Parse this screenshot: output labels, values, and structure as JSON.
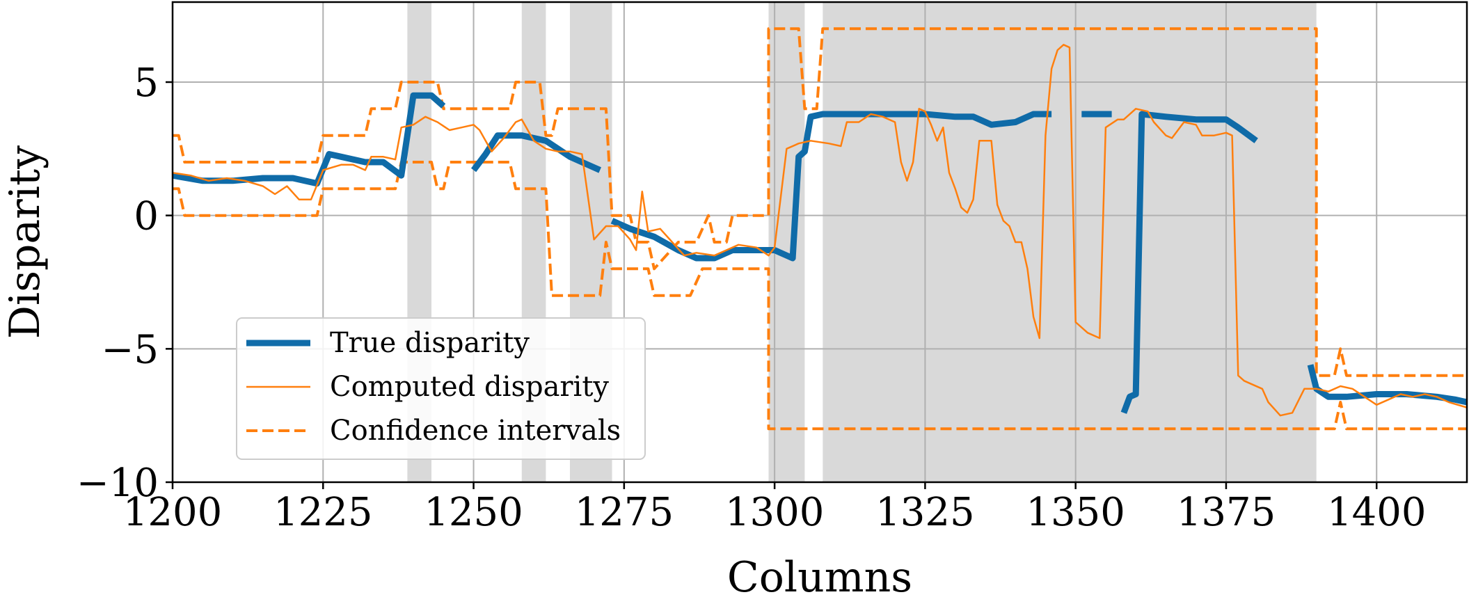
{
  "chart_data": {
    "type": "line",
    "title": "",
    "xlabel": "Columns",
    "ylabel": "Disparity",
    "xlim": [
      1200,
      1415
    ],
    "ylim": [
      -10,
      8
    ],
    "grid": true,
    "legend_position": "lower-left",
    "x_ticks": [
      1200,
      1225,
      1250,
      1275,
      1300,
      1325,
      1350,
      1375,
      1400
    ],
    "x_tick_labels": [
      "1200",
      "1225",
      "1250",
      "1275",
      "1300",
      "1325",
      "1350",
      "1375",
      "1400"
    ],
    "y_ticks": [
      5,
      0,
      -5,
      -10
    ],
    "y_tick_labels": [
      "5",
      "0",
      "−5",
      "−10"
    ],
    "shaded_regions": [
      [
        1239,
        1243
      ],
      [
        1258,
        1262
      ],
      [
        1266,
        1273
      ],
      [
        1299,
        1305
      ],
      [
        1308,
        1390
      ]
    ],
    "series": [
      {
        "name": "True disparity",
        "style": "thick",
        "color": "#0f6ba8",
        "segments": [
          [
            [
              1200,
              1.5
            ],
            [
              1205,
              1.3
            ],
            [
              1210,
              1.3
            ],
            [
              1215,
              1.4
            ],
            [
              1220,
              1.4
            ],
            [
              1224,
              1.2
            ],
            [
              1226,
              2.3
            ],
            [
              1228,
              2.2
            ],
            [
              1232,
              2.0
            ],
            [
              1235,
              2.0
            ],
            [
              1238,
              1.5
            ],
            [
              1240,
              4.5
            ],
            [
              1243,
              4.5
            ],
            [
              1245,
              4.1
            ]
          ],
          [
            [
              1250,
              1.7
            ],
            [
              1252,
              2.3
            ],
            [
              1254,
              3.0
            ],
            [
              1258,
              3.0
            ],
            [
              1262,
              2.8
            ],
            [
              1266,
              2.2
            ],
            [
              1270,
              1.8
            ],
            [
              1271,
              1.7
            ]
          ],
          [
            [
              1273,
              -0.2
            ],
            [
              1276,
              -0.5
            ],
            [
              1280,
              -0.8
            ],
            [
              1284,
              -1.3
            ],
            [
              1287,
              -1.6
            ],
            [
              1290,
              -1.6
            ],
            [
              1293,
              -1.3
            ],
            [
              1297,
              -1.3
            ],
            [
              1300,
              -1.3
            ],
            [
              1302,
              -1.5
            ],
            [
              1303,
              -1.6
            ],
            [
              1304,
              2.2
            ],
            [
              1305,
              2.4
            ],
            [
              1306,
              3.7
            ],
            [
              1308,
              3.8
            ],
            [
              1315,
              3.8
            ],
            [
              1320,
              3.8
            ],
            [
              1325,
              3.8
            ],
            [
              1330,
              3.7
            ],
            [
              1333,
              3.7
            ],
            [
              1336,
              3.4
            ],
            [
              1340,
              3.5
            ],
            [
              1343,
              3.8
            ],
            [
              1346,
              3.8
            ]
          ],
          [
            [
              1351,
              3.8
            ],
            [
              1356,
              3.8
            ]
          ],
          [
            [
              1358,
              -7.4
            ],
            [
              1359,
              -6.8
            ],
            [
              1360,
              -6.7
            ],
            [
              1361,
              3.8
            ],
            [
              1365,
              3.7
            ],
            [
              1370,
              3.6
            ],
            [
              1375,
              3.6
            ],
            [
              1377,
              3.3
            ],
            [
              1380,
              2.8
            ]
          ],
          [
            [
              1389,
              -5.6
            ],
            [
              1390,
              -6.5
            ],
            [
              1392,
              -6.8
            ],
            [
              1395,
              -6.8
            ],
            [
              1400,
              -6.7
            ],
            [
              1405,
              -6.7
            ],
            [
              1410,
              -6.8
            ],
            [
              1413,
              -6.9
            ],
            [
              1415,
              -7.0
            ]
          ]
        ]
      },
      {
        "name": "Computed disparity",
        "style": "thin",
        "color": "#ff7f0e",
        "segments": [
          [
            [
              1200,
              1.6
            ],
            [
              1203,
              1.5
            ],
            [
              1206,
              1.3
            ],
            [
              1209,
              1.4
            ],
            [
              1212,
              1.3
            ],
            [
              1215,
              1.1
            ],
            [
              1217,
              0.8
            ],
            [
              1219,
              1.1
            ],
            [
              1221,
              0.6
            ],
            [
              1223,
              0.6
            ],
            [
              1225,
              1.7
            ],
            [
              1228,
              1.9
            ],
            [
              1230,
              1.9
            ],
            [
              1232,
              1.7
            ],
            [
              1233,
              2.2
            ],
            [
              1235,
              2.2
            ],
            [
              1237,
              2.1
            ],
            [
              1238,
              3.3
            ],
            [
              1240,
              3.4
            ],
            [
              1242,
              3.7
            ],
            [
              1244,
              3.5
            ],
            [
              1246,
              3.2
            ],
            [
              1248,
              3.3
            ],
            [
              1250,
              3.4
            ],
            [
              1251,
              3.2
            ],
            [
              1253,
              2.4
            ],
            [
              1255,
              2.9
            ],
            [
              1257,
              3.5
            ],
            [
              1258,
              3.6
            ],
            [
              1260,
              2.8
            ],
            [
              1262,
              2.5
            ],
            [
              1264,
              2.4
            ],
            [
              1266,
              2.4
            ],
            [
              1268,
              2.3
            ],
            [
              1270,
              -0.9
            ],
            [
              1272,
              -0.4
            ],
            [
              1274,
              -0.4
            ],
            [
              1276,
              -0.9
            ],
            [
              1277,
              -1.3
            ],
            [
              1278,
              0.9
            ],
            [
              1279,
              -0.6
            ],
            [
              1281,
              -0.5
            ],
            [
              1283,
              -1.0
            ],
            [
              1285,
              -1.5
            ],
            [
              1287,
              -1.4
            ],
            [
              1290,
              -1.5
            ],
            [
              1292,
              -1.3
            ],
            [
              1294,
              -1.1
            ],
            [
              1297,
              -1.2
            ],
            [
              1299,
              -1.5
            ],
            [
              1300,
              -1.2
            ],
            [
              1302,
              2.5
            ],
            [
              1304,
              2.7
            ],
            [
              1306,
              2.8
            ],
            [
              1309,
              2.7
            ],
            [
              1311,
              2.6
            ],
            [
              1312,
              3.5
            ],
            [
              1314,
              3.5
            ],
            [
              1316,
              3.8
            ],
            [
              1318,
              3.7
            ],
            [
              1320,
              3.5
            ],
            [
              1321,
              2.0
            ],
            [
              1322,
              1.3
            ],
            [
              1323,
              2.0
            ],
            [
              1324,
              4.0
            ],
            [
              1325,
              3.9
            ],
            [
              1326,
              3.4
            ],
            [
              1327,
              2.8
            ],
            [
              1328,
              3.3
            ],
            [
              1329,
              1.6
            ],
            [
              1330,
              1.0
            ],
            [
              1331,
              0.3
            ],
            [
              1332,
              0.1
            ],
            [
              1333,
              0.6
            ],
            [
              1334,
              2.8
            ],
            [
              1336,
              2.8
            ],
            [
              1337,
              0.4
            ],
            [
              1338,
              -0.2
            ],
            [
              1339,
              -0.4
            ],
            [
              1340,
              -1.0
            ],
            [
              1341,
              -1.0
            ],
            [
              1342,
              -2.0
            ],
            [
              1343,
              -3.8
            ],
            [
              1344,
              -4.6
            ],
            [
              1345,
              3.0
            ],
            [
              1346,
              5.5
            ],
            [
              1347,
              6.2
            ],
            [
              1348,
              6.4
            ],
            [
              1349,
              6.3
            ],
            [
              1350,
              -4.0
            ],
            [
              1352,
              -4.4
            ],
            [
              1354,
              -4.6
            ],
            [
              1355,
              3.3
            ],
            [
              1357,
              3.6
            ],
            [
              1358,
              3.6
            ],
            [
              1360,
              4.0
            ],
            [
              1362,
              3.9
            ],
            [
              1363,
              3.5
            ],
            [
              1365,
              3.0
            ],
            [
              1366,
              2.9
            ],
            [
              1368,
              3.5
            ],
            [
              1370,
              3.4
            ],
            [
              1371,
              3.0
            ],
            [
              1373,
              3.0
            ],
            [
              1375,
              3.1
            ],
            [
              1376,
              3.0
            ],
            [
              1377,
              -6.0
            ],
            [
              1378,
              -6.2
            ],
            [
              1379,
              -6.3
            ],
            [
              1381,
              -6.5
            ],
            [
              1382,
              -7.0
            ],
            [
              1384,
              -7.5
            ],
            [
              1386,
              -7.4
            ],
            [
              1388,
              -6.5
            ],
            [
              1390,
              -6.5
            ],
            [
              1392,
              -6.6
            ],
            [
              1394,
              -6.4
            ],
            [
              1396,
              -6.5
            ],
            [
              1398,
              -6.8
            ],
            [
              1400,
              -7.1
            ],
            [
              1402,
              -6.9
            ],
            [
              1404,
              -6.7
            ],
            [
              1406,
              -6.8
            ],
            [
              1408,
              -6.7
            ],
            [
              1410,
              -6.8
            ],
            [
              1412,
              -7.0
            ],
            [
              1415,
              -7.2
            ]
          ]
        ]
      },
      {
        "name": "Confidence intervals",
        "style": "dashed",
        "color": "#ff7f0e",
        "segments": [
          [
            [
              1200,
              3
            ],
            [
              1201,
              3
            ],
            [
              1202,
              2
            ],
            [
              1224,
              2
            ],
            [
              1225,
              3
            ],
            [
              1232,
              3
            ],
            [
              1233,
              4
            ],
            [
              1237,
              4
            ],
            [
              1238,
              5
            ],
            [
              1244,
              5
            ],
            [
              1245,
              4
            ],
            [
              1256,
              4
            ],
            [
              1257,
              5
            ],
            [
              1261,
              5
            ],
            [
              1262,
              3
            ],
            [
              1263,
              3
            ],
            [
              1264,
              4
            ],
            [
              1272,
              4
            ],
            [
              1273,
              0
            ],
            [
              1276,
              0
            ],
            [
              1277,
              -1
            ],
            [
              1279,
              -1
            ],
            [
              1280,
              -2
            ],
            [
              1284,
              -1
            ],
            [
              1287,
              -1
            ],
            [
              1289,
              0
            ],
            [
              1290,
              -1
            ],
            [
              1292,
              -1
            ],
            [
              1293,
              0
            ],
            [
              1299,
              0
            ],
            [
              1299,
              7
            ],
            [
              1304,
              7
            ],
            [
              1305,
              4
            ],
            [
              1307,
              4
            ],
            [
              1308,
              7
            ],
            [
              1390,
              7
            ],
            [
              1390,
              -6
            ],
            [
              1393,
              -6
            ],
            [
              1394,
              -5.0
            ],
            [
              1395,
              -6
            ],
            [
              1415,
              -6
            ]
          ],
          [
            [
              1200,
              1
            ],
            [
              1201,
              1
            ],
            [
              1202,
              0
            ],
            [
              1224,
              0
            ],
            [
              1225,
              1
            ],
            [
              1237,
              1
            ],
            [
              1238,
              2
            ],
            [
              1243,
              2
            ],
            [
              1244,
              1
            ],
            [
              1245,
              1
            ],
            [
              1246,
              2
            ],
            [
              1256,
              2
            ],
            [
              1257,
              1
            ],
            [
              1262,
              1
            ],
            [
              1263,
              -3
            ],
            [
              1271,
              -3
            ],
            [
              1272,
              -1
            ],
            [
              1273,
              -2
            ],
            [
              1275,
              -2
            ],
            [
              1277,
              -2
            ],
            [
              1279,
              -2
            ],
            [
              1280,
              -3
            ],
            [
              1286,
              -3
            ],
            [
              1288,
              -2
            ],
            [
              1299,
              -2
            ],
            [
              1299,
              -8
            ],
            [
              1304,
              -8
            ],
            [
              1305,
              -8
            ],
            [
              1307,
              -8
            ],
            [
              1308,
              -8
            ],
            [
              1393,
              -8
            ],
            [
              1394,
              -7.0
            ],
            [
              1395,
              -8
            ],
            [
              1415,
              -8
            ]
          ]
        ]
      }
    ],
    "legend": [
      {
        "label": "True disparity",
        "style": "thick"
      },
      {
        "label": "Computed disparity",
        "style": "thin"
      },
      {
        "label": "Confidence intervals",
        "style": "dashed"
      }
    ]
  }
}
